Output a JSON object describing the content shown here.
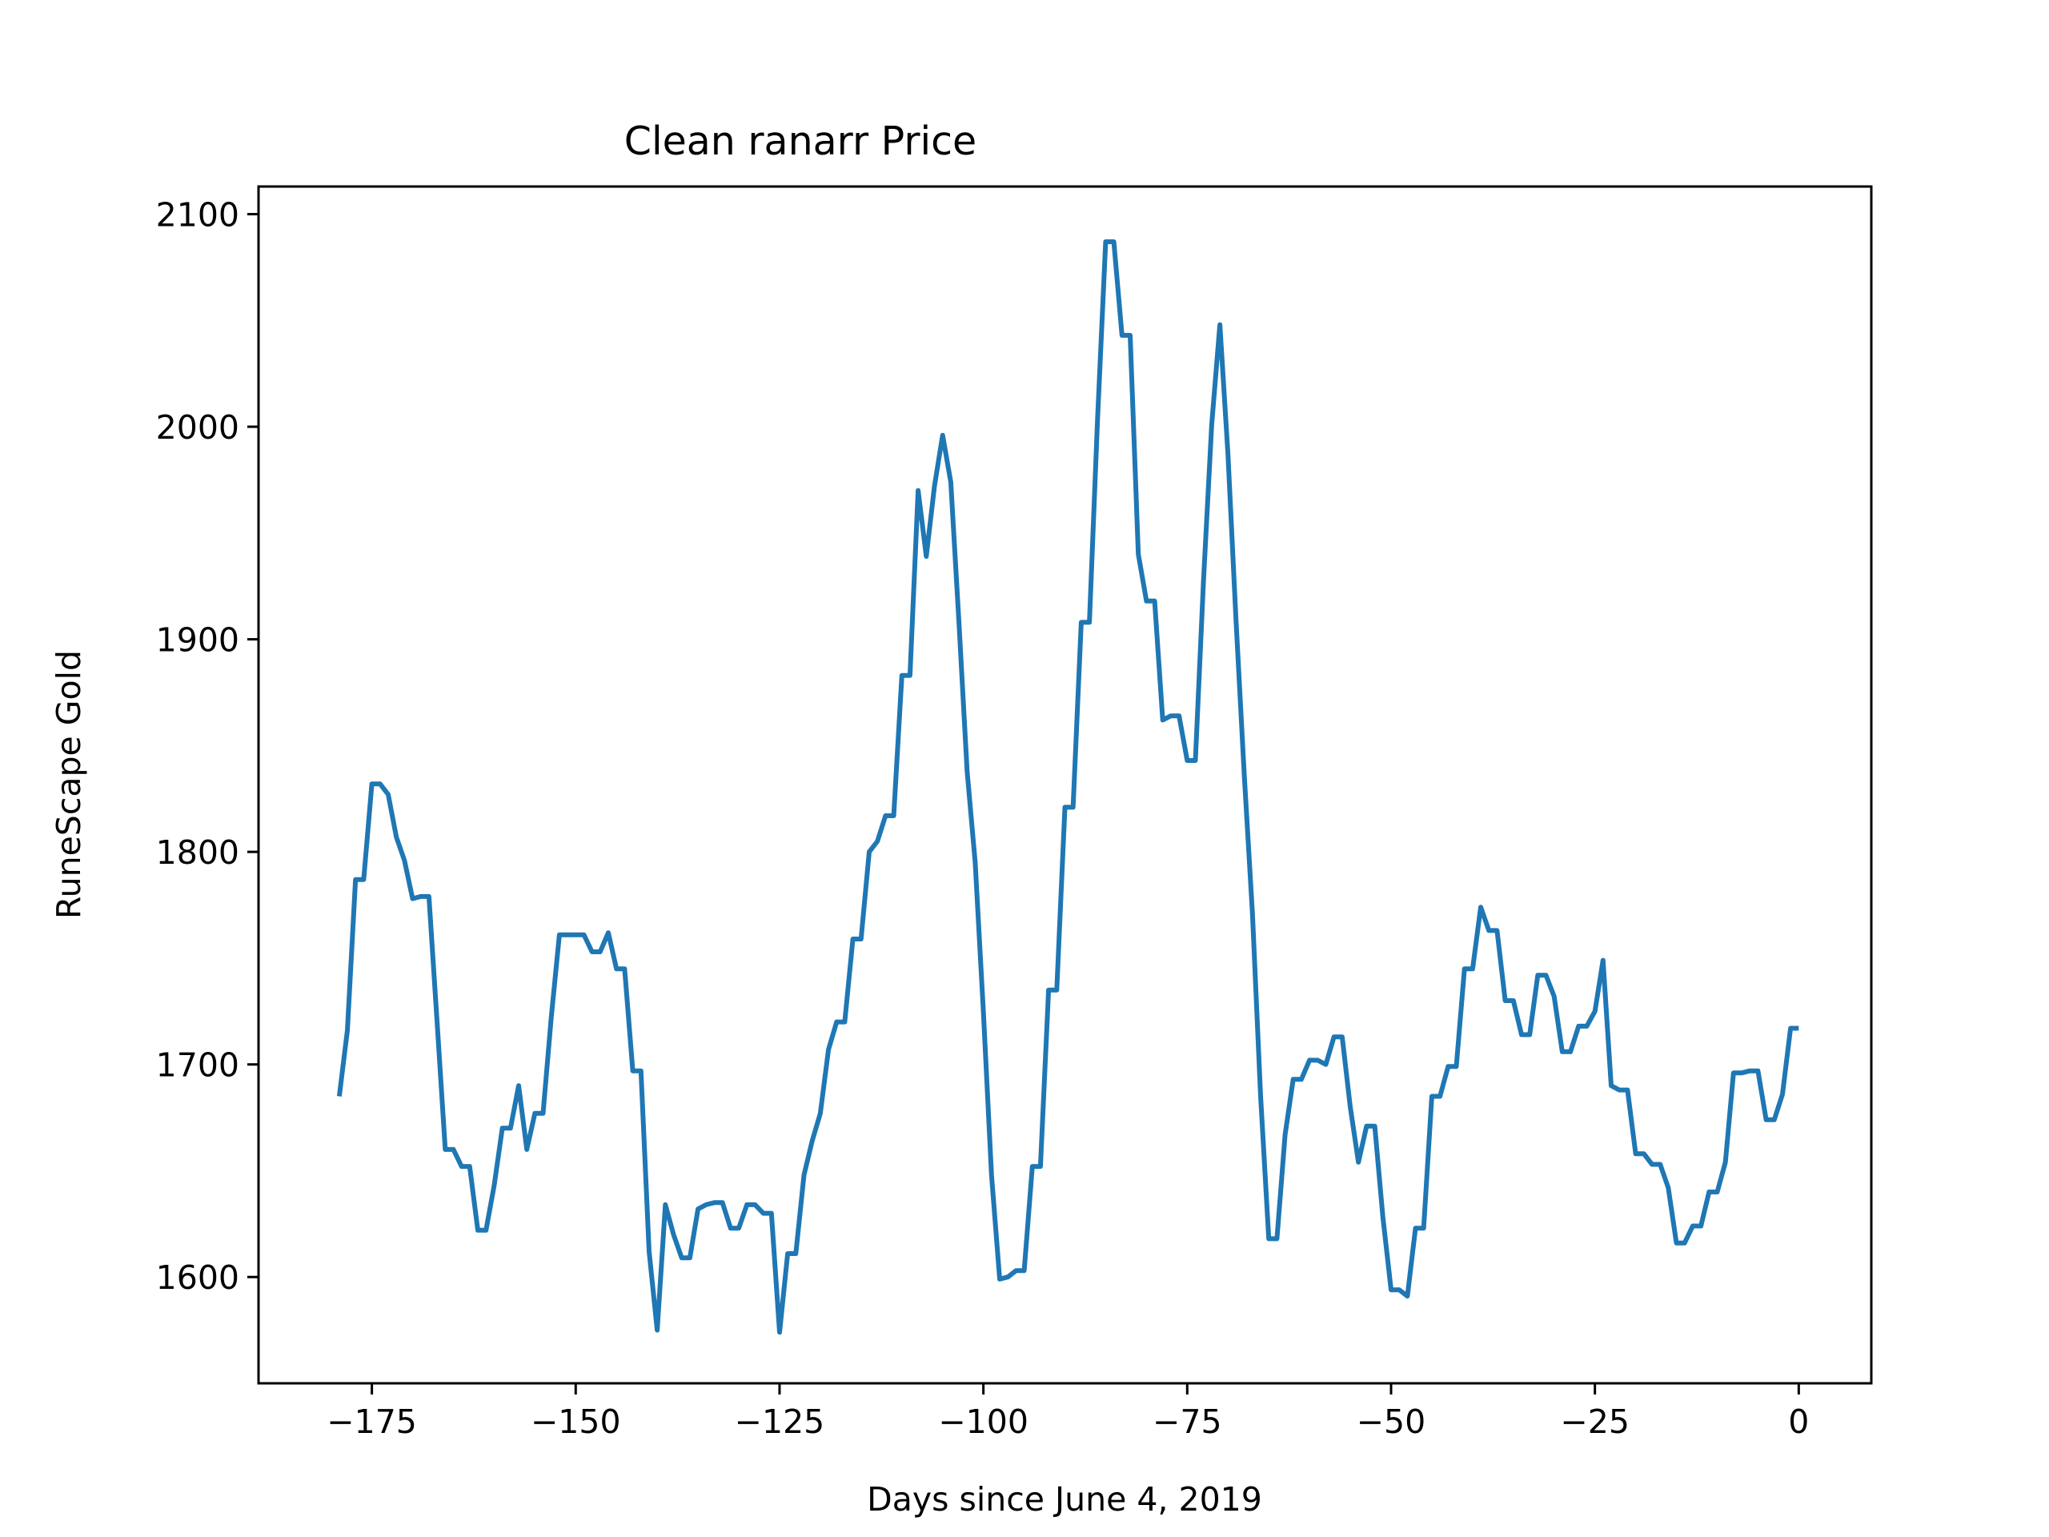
{
  "chart_data": {
    "type": "line",
    "title": "Clean ranarr Price",
    "xlabel": "Days since June 4, 2019",
    "ylabel": "RuneScape Gold",
    "xlim": [
      -188.9,
      8.9
    ],
    "ylim": [
      1550,
      2113
    ],
    "x_ticks": [
      -175,
      -150,
      -125,
      -100,
      -75,
      -50,
      -25,
      0
    ],
    "x_tick_labels": [
      "−175",
      "−150",
      "−125",
      "−100",
      "−75",
      "−50",
      "−25",
      "0"
    ],
    "y_ticks": [
      1600,
      1700,
      1800,
      1900,
      2000,
      2100
    ],
    "y_tick_labels": [
      "1600",
      "1700",
      "1800",
      "1900",
      "2000",
      "2100"
    ],
    "grid": false,
    "series": [
      {
        "color": "#1f77b4",
        "points": [
          [
            -179,
            1685
          ],
          [
            -178,
            1716
          ],
          [
            -177,
            1787
          ],
          [
            -176,
            1787
          ],
          [
            -175,
            1832
          ],
          [
            -174,
            1832
          ],
          [
            -173,
            1827
          ],
          [
            -172,
            1807
          ],
          [
            -171,
            1796
          ],
          [
            -170,
            1778
          ],
          [
            -169,
            1779
          ],
          [
            -168,
            1779
          ],
          [
            -167,
            1720
          ],
          [
            -166,
            1660
          ],
          [
            -165,
            1660
          ],
          [
            -164,
            1652
          ],
          [
            -163,
            1652
          ],
          [
            -162,
            1622
          ],
          [
            -161,
            1622
          ],
          [
            -160,
            1643
          ],
          [
            -159,
            1670
          ],
          [
            -158,
            1670
          ],
          [
            -157,
            1690
          ],
          [
            -156,
            1660
          ],
          [
            -155,
            1677
          ],
          [
            -154,
            1677
          ],
          [
            -153,
            1722
          ],
          [
            -152,
            1761
          ],
          [
            -151,
            1761
          ],
          [
            -150,
            1761
          ],
          [
            -149,
            1761
          ],
          [
            -148,
            1753
          ],
          [
            -147,
            1753
          ],
          [
            -146,
            1762
          ],
          [
            -145,
            1745
          ],
          [
            -144,
            1745
          ],
          [
            -143,
            1697
          ],
          [
            -142,
            1697
          ],
          [
            -141,
            1612
          ],
          [
            -140,
            1575
          ],
          [
            -139,
            1634
          ],
          [
            -138,
            1620
          ],
          [
            -137,
            1609
          ],
          [
            -136,
            1609
          ],
          [
            -135,
            1632
          ],
          [
            -134,
            1634
          ],
          [
            -133,
            1635
          ],
          [
            -132,
            1635
          ],
          [
            -131,
            1623
          ],
          [
            -130,
            1623
          ],
          [
            -129,
            1634
          ],
          [
            -128,
            1634
          ],
          [
            -127,
            1630
          ],
          [
            -126,
            1630
          ],
          [
            -125,
            1574
          ],
          [
            -124,
            1611
          ],
          [
            -123,
            1611
          ],
          [
            -122,
            1648
          ],
          [
            -121,
            1664
          ],
          [
            -120,
            1677
          ],
          [
            -119,
            1707
          ],
          [
            -118,
            1720
          ],
          [
            -117,
            1720
          ],
          [
            -116,
            1759
          ],
          [
            -115,
            1759
          ],
          [
            -114,
            1800
          ],
          [
            -113,
            1805
          ],
          [
            -112,
            1817
          ],
          [
            -111,
            1817
          ],
          [
            -110,
            1883
          ],
          [
            -109,
            1883
          ],
          [
            -108,
            1970
          ],
          [
            -107,
            1939
          ],
          [
            -106,
            1972
          ],
          [
            -105,
            1996
          ],
          [
            -104,
            1974
          ],
          [
            -103,
            1908
          ],
          [
            -102,
            1838
          ],
          [
            -101,
            1795
          ],
          [
            -100,
            1725
          ],
          [
            -99,
            1648
          ],
          [
            -98,
            1599
          ],
          [
            -97,
            1600
          ],
          [
            -96,
            1603
          ],
          [
            -95,
            1603
          ],
          [
            -94,
            1652
          ],
          [
            -93,
            1652
          ],
          [
            -92,
            1735
          ],
          [
            -91,
            1735
          ],
          [
            -90,
            1821
          ],
          [
            -89,
            1821
          ],
          [
            -88,
            1908
          ],
          [
            -87,
            1908
          ],
          [
            -86,
            2003
          ],
          [
            -85,
            2087
          ],
          [
            -84,
            2087
          ],
          [
            -83,
            2043
          ],
          [
            -82,
            2043
          ],
          [
            -81,
            1940
          ],
          [
            -80,
            1918
          ],
          [
            -79,
            1918
          ],
          [
            -78,
            1862
          ],
          [
            -77,
            1864
          ],
          [
            -76,
            1864
          ],
          [
            -75,
            1843
          ],
          [
            -74,
            1843
          ],
          [
            -73,
            1928
          ],
          [
            -72,
            2001
          ],
          [
            -71,
            2048
          ],
          [
            -70,
            1987
          ],
          [
            -69,
            1908
          ],
          [
            -68,
            1836
          ],
          [
            -67,
            1771
          ],
          [
            -66,
            1685
          ],
          [
            -65,
            1618
          ],
          [
            -64,
            1618
          ],
          [
            -63,
            1667
          ],
          [
            -62,
            1693
          ],
          [
            -61,
            1693
          ],
          [
            -60,
            1702
          ],
          [
            -59,
            1702
          ],
          [
            -58,
            1700
          ],
          [
            -57,
            1713
          ],
          [
            -56,
            1713
          ],
          [
            -55,
            1680
          ],
          [
            -54,
            1654
          ],
          [
            -53,
            1671
          ],
          [
            -52,
            1671
          ],
          [
            -51,
            1628
          ],
          [
            -50,
            1594
          ],
          [
            -49,
            1594
          ],
          [
            -48,
            1591
          ],
          [
            -47,
            1623
          ],
          [
            -46,
            1623
          ],
          [
            -45,
            1685
          ],
          [
            -44,
            1685
          ],
          [
            -43,
            1699
          ],
          [
            -42,
            1699
          ],
          [
            -41,
            1745
          ],
          [
            -40,
            1745
          ],
          [
            -39,
            1774
          ],
          [
            -38,
            1763
          ],
          [
            -37,
            1763
          ],
          [
            -36,
            1730
          ],
          [
            -35,
            1730
          ],
          [
            -34,
            1714
          ],
          [
            -33,
            1714
          ],
          [
            -32,
            1742
          ],
          [
            -31,
            1742
          ],
          [
            -30,
            1732
          ],
          [
            -29,
            1706
          ],
          [
            -28,
            1706
          ],
          [
            -27,
            1718
          ],
          [
            -26,
            1718
          ],
          [
            -25,
            1725
          ],
          [
            -24,
            1749
          ],
          [
            -23,
            1690
          ],
          [
            -22,
            1688
          ],
          [
            -21,
            1688
          ],
          [
            -20,
            1658
          ],
          [
            -19,
            1658
          ],
          [
            -18,
            1653
          ],
          [
            -17,
            1653
          ],
          [
            -16,
            1642
          ],
          [
            -15,
            1616
          ],
          [
            -14,
            1616
          ],
          [
            -13,
            1624
          ],
          [
            -12,
            1624
          ],
          [
            -11,
            1640
          ],
          [
            -10,
            1640
          ],
          [
            -9,
            1654
          ],
          [
            -8,
            1696
          ],
          [
            -7,
            1696
          ],
          [
            -6,
            1697
          ],
          [
            -5,
            1697
          ],
          [
            -4,
            1674
          ],
          [
            -3,
            1674
          ],
          [
            -2,
            1686
          ],
          [
            -1,
            1717
          ],
          [
            0,
            1717
          ]
        ]
      }
    ]
  }
}
